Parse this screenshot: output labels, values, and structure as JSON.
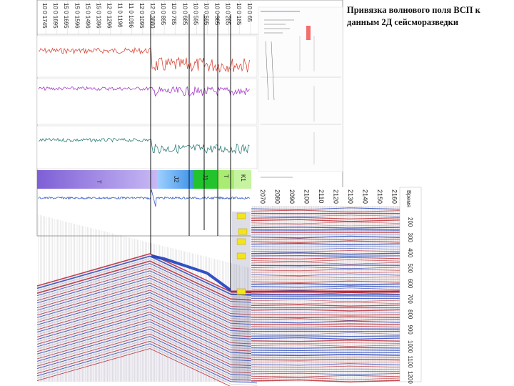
{
  "title": "Привязка волнового поля ВСП к данным 2Д сейсморазведки",
  "depth_track": {
    "labels": [
      "10 0 1745",
      "10 0 1695",
      "15 0 1695",
      "15 0 1596",
      "15 0 1496",
      "15 0 1396",
      "12 0 1296",
      "11 0 1196",
      "11 0 1096",
      "12 0 1095",
      "12 0 3880",
      "10 0 895",
      "10 0 785",
      "10 0 685",
      "10 0 595",
      "10 0 595",
      "10 0 385",
      "10 0 285",
      "10 0 185",
      "10 0 65"
    ]
  },
  "log_tracks": [
    {
      "color": "#d84a3a"
    },
    {
      "color": "#a23bc4"
    },
    {
      "color": "#2f7f7a"
    }
  ],
  "strat_units": [
    {
      "label": "T",
      "color": "#8f6ee0"
    },
    {
      "label": "J2",
      "color": "#3f93e8"
    },
    {
      "label": "J1",
      "color": "#22c32d"
    },
    {
      "label": "T",
      "color": "#a8ec72"
    },
    {
      "label": "K1",
      "color": "#c6f3a0"
    }
  ],
  "seismic_axis_labels": [
    "2070",
    "2080",
    "2090",
    "2100",
    "2110",
    "2120",
    "2130",
    "2140",
    "2150",
    "2160"
  ],
  "twt_axis": {
    "unit": "Время",
    "labels": [
      "200",
      "300",
      "400",
      "500",
      "600",
      "700",
      "800",
      "900",
      "1000",
      "1100",
      "1200"
    ]
  },
  "colors": {
    "peak": "#1c3fbf",
    "trough": "#c0202a",
    "marker": "#f4e51a"
  }
}
